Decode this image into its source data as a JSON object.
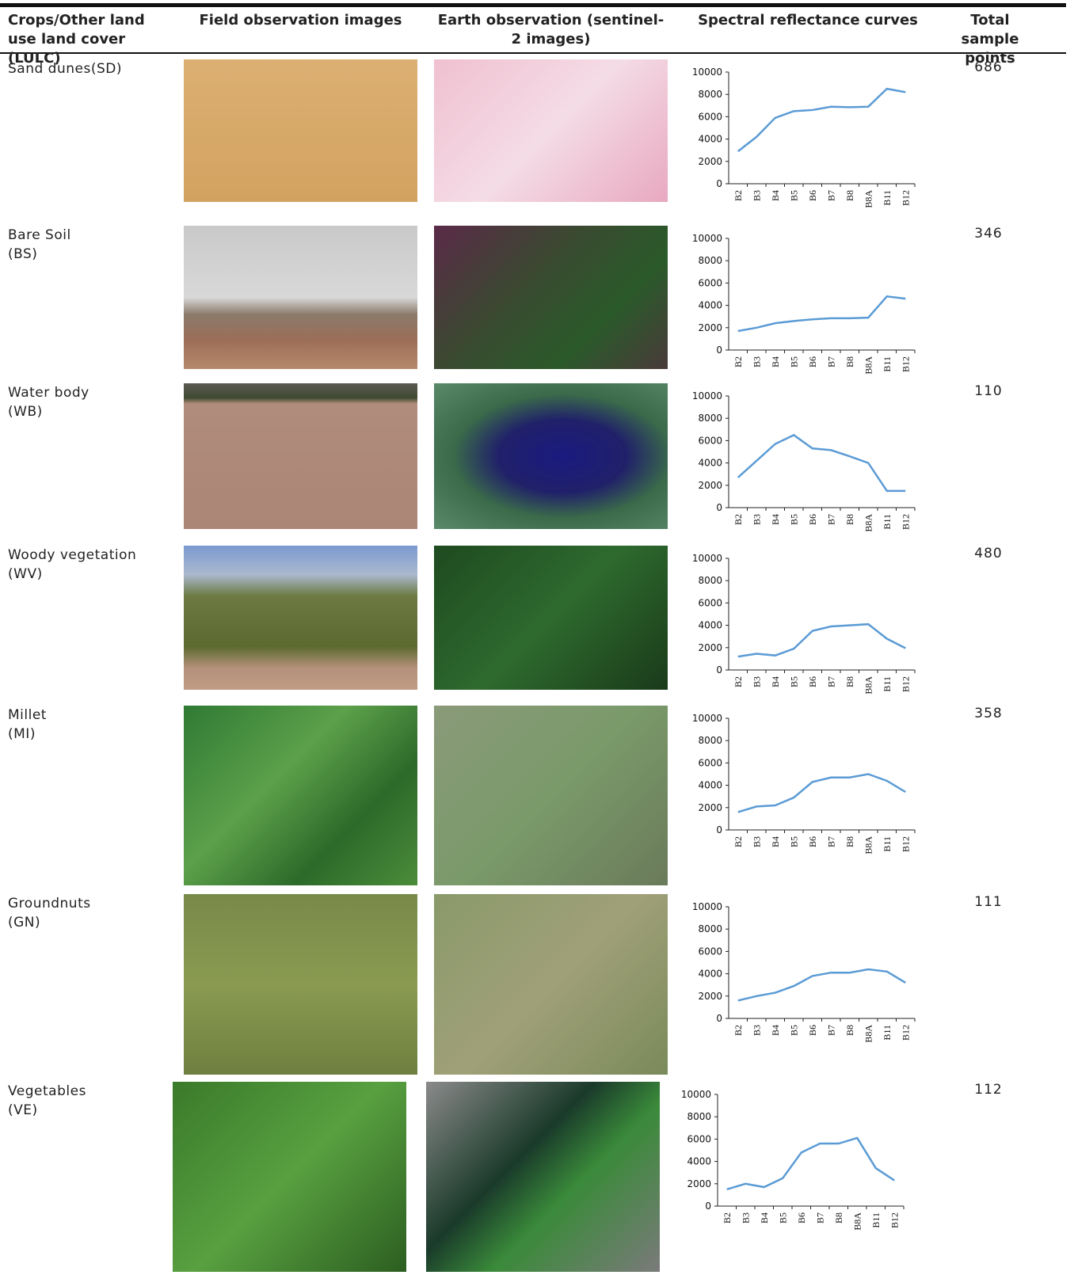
{
  "table": {
    "columns": [
      "Crops/Other land use land cover (LULC)",
      "Field observation images",
      "Earth observation (sentinel-2 images)",
      "Spectral reflectance curves",
      "Total sample points"
    ],
    "rows": [
      {
        "class": "Sand dunes(SD)",
        "samples": 686,
        "chart": {
          "type": "line",
          "categories": [
            "B2",
            "B3",
            "B4",
            "B5",
            "B6",
            "B7",
            "B8",
            "B8A",
            "B11",
            "B12"
          ],
          "values": [
            2900,
            4200,
            5900,
            6500,
            6600,
            6900,
            6850,
            6900,
            8500,
            8200
          ],
          "ylim": [
            0,
            10000
          ],
          "yticks": [
            0,
            2000,
            4000,
            6000,
            8000,
            10000
          ],
          "color": "#5b9bd5"
        }
      },
      {
        "class": "Bare Soil\n(BS)",
        "samples": 346,
        "chart": {
          "type": "line",
          "categories": [
            "B2",
            "B3",
            "B4",
            "B5",
            "B6",
            "B7",
            "B8",
            "B8A",
            "B11",
            "B12"
          ],
          "values": [
            1700,
            2000,
            2400,
            2600,
            2750,
            2850,
            2850,
            2900,
            4800,
            4600
          ],
          "ylim": [
            0,
            10000
          ],
          "yticks": [
            0,
            2000,
            4000,
            6000,
            8000,
            10000
          ],
          "color": "#5b9bd5"
        }
      },
      {
        "class": "Water body\n(WB)",
        "samples": 110,
        "chart": {
          "type": "line",
          "categories": [
            "B2",
            "B3",
            "B4",
            "B5",
            "B6",
            "B7",
            "B8",
            "B8A",
            "B11",
            "B12"
          ],
          "values": [
            2700,
            4200,
            5700,
            6500,
            5300,
            5150,
            4600,
            4000,
            1500,
            1500
          ],
          "ylim": [
            0,
            10000
          ],
          "yticks": [
            0,
            2000,
            4000,
            6000,
            8000,
            10000
          ],
          "color": "#5b9bd5"
        }
      },
      {
        "class": "Woody vegetation\n(WV)",
        "samples": 480,
        "chart": {
          "type": "line",
          "categories": [
            "B2",
            "B3",
            "B4",
            "B5",
            "B6",
            "B7",
            "B8",
            "B8A",
            "B11",
            "B12"
          ],
          "values": [
            1200,
            1450,
            1300,
            1900,
            3500,
            3900,
            4000,
            4100,
            2800,
            1950
          ],
          "ylim": [
            0,
            10000
          ],
          "yticks": [
            0,
            2000,
            4000,
            6000,
            8000,
            10000
          ],
          "color": "#5b9bd5"
        }
      },
      {
        "class": "Millet\n(MI)",
        "samples": 358,
        "chart": {
          "type": "line",
          "categories": [
            "B2",
            "B3",
            "B4",
            "B5",
            "B6",
            "B7",
            "B8",
            "B8A",
            "B11",
            "B12"
          ],
          "values": [
            1600,
            2100,
            2200,
            2900,
            4300,
            4700,
            4700,
            5000,
            4400,
            3400
          ],
          "ylim": [
            0,
            10000
          ],
          "yticks": [
            0,
            2000,
            4000,
            6000,
            8000,
            10000
          ],
          "color": "#5b9bd5"
        }
      },
      {
        "class": "Groundnuts\n(GN)",
        "samples": 111,
        "chart": {
          "type": "line",
          "categories": [
            "B2",
            "B3",
            "B4",
            "B5",
            "B6",
            "B7",
            "B8",
            "B8A",
            "B11",
            "B12"
          ],
          "values": [
            1600,
            2000,
            2300,
            2900,
            3800,
            4100,
            4100,
            4400,
            4200,
            3200
          ],
          "ylim": [
            0,
            10000
          ],
          "yticks": [
            0,
            2000,
            4000,
            6000,
            8000,
            10000
          ],
          "color": "#5b9bd5"
        }
      },
      {
        "class": "Vegetables\n(VE)",
        "samples": 112,
        "chart": {
          "type": "line",
          "categories": [
            "B2",
            "B3",
            "B4",
            "B5",
            "B6",
            "B7",
            "B8",
            "B8A",
            "B11",
            "B12"
          ],
          "values": [
            1500,
            2000,
            1700,
            2500,
            4800,
            5600,
            5600,
            6100,
            3400,
            2300
          ],
          "ylim": [
            0,
            10000
          ],
          "yticks": [
            0,
            2000,
            4000,
            6000,
            8000,
            10000
          ],
          "color": "#5b9bd5"
        }
      }
    ]
  }
}
